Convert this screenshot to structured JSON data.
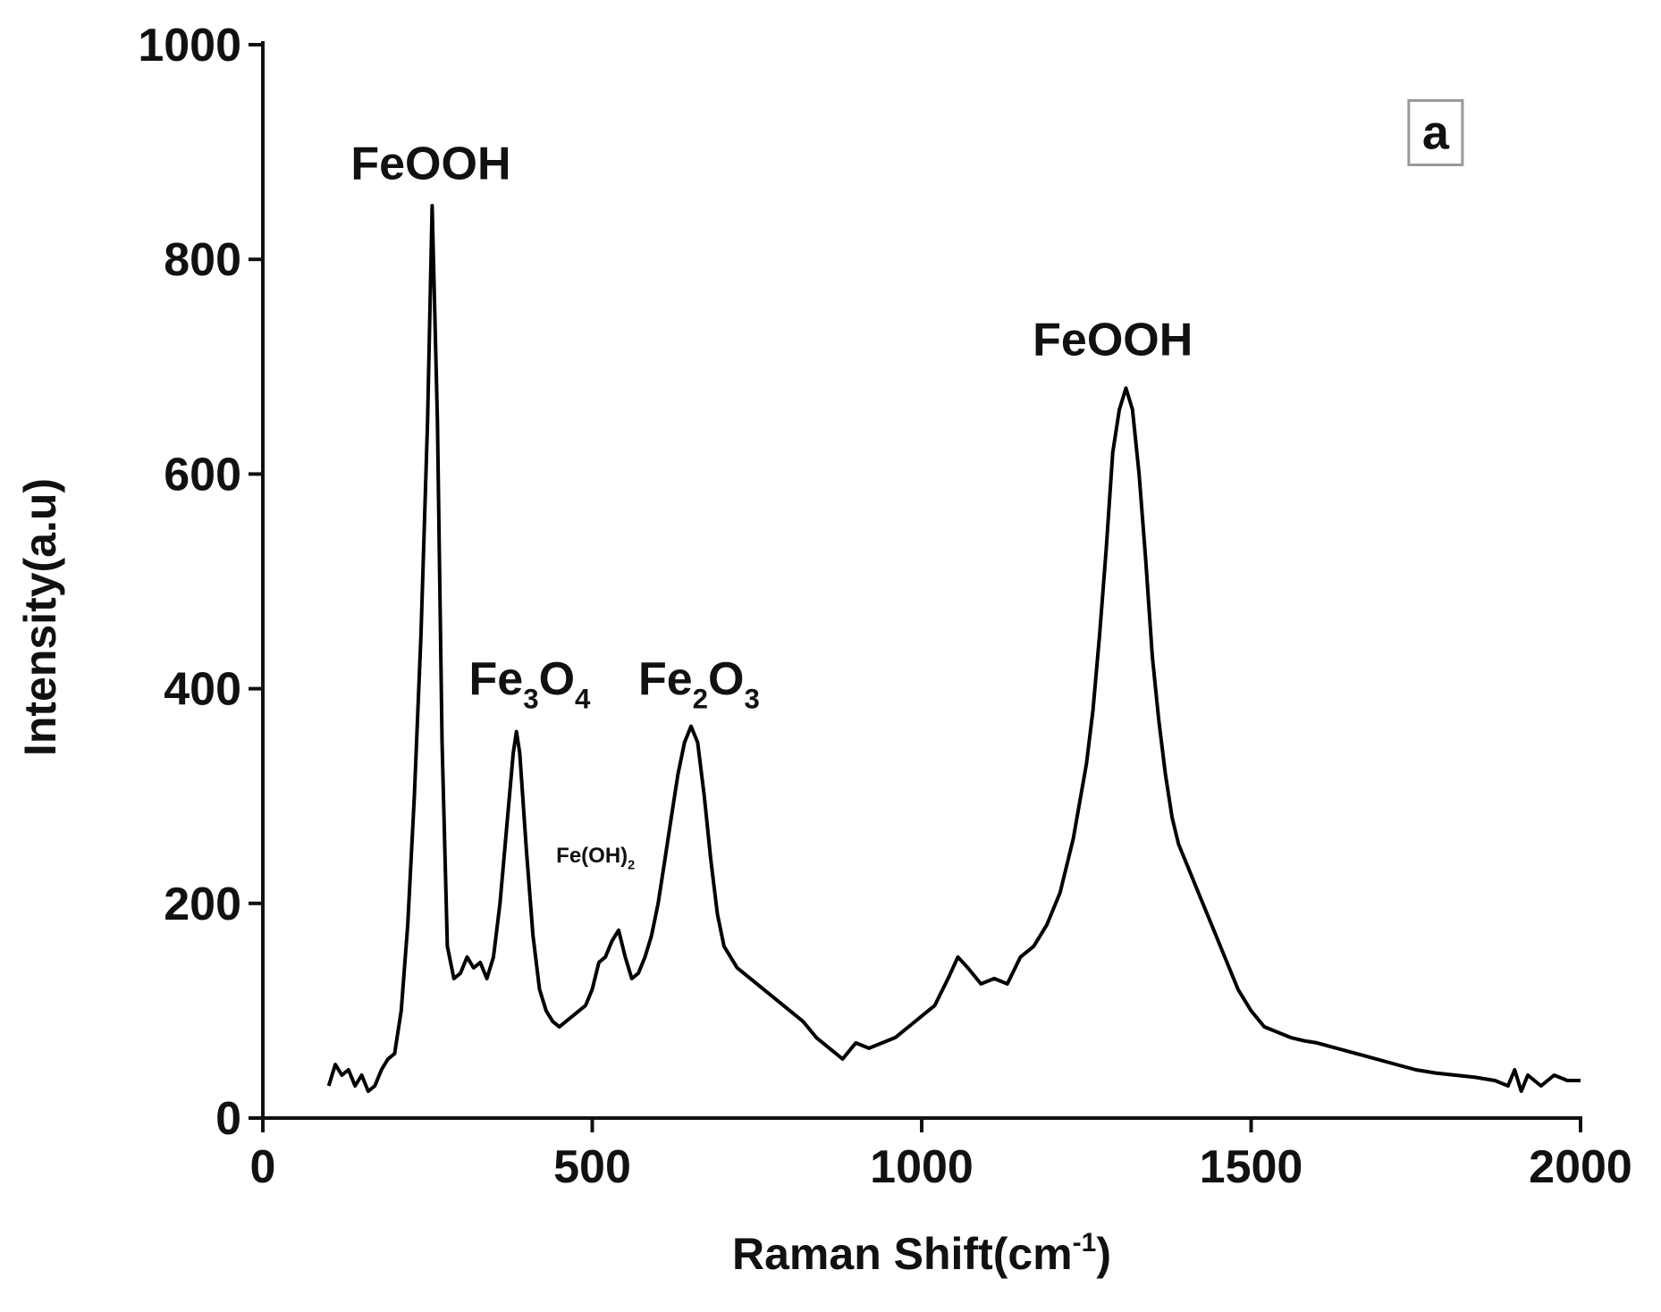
{
  "chart_data": {
    "type": "line",
    "xlabel": [
      {
        "text": "Raman Shift(cm"
      },
      {
        "text": "-1",
        "sup": true
      },
      {
        "text": ")"
      }
    ],
    "ylabel": "Intensity(a.u)",
    "panel_label": "a",
    "color": "#000000",
    "xlim": [
      0,
      2000
    ],
    "xticks": [
      0,
      500,
      1000,
      1500,
      2000
    ],
    "ylim": [
      0,
      1000
    ],
    "yticks": [
      0,
      200,
      400,
      600,
      800,
      1000
    ],
    "annotations": [
      {
        "x": 255,
        "y": 890,
        "size": "large",
        "parts": [
          {
            "text": "FeOOH"
          }
        ]
      },
      {
        "x": 405,
        "y": 410,
        "size": "large",
        "parts": [
          {
            "text": "Fe"
          },
          {
            "text": "3",
            "sub": true
          },
          {
            "text": "O"
          },
          {
            "text": "4",
            "sub": true
          }
        ]
      },
      {
        "x": 662,
        "y": 410,
        "size": "large",
        "parts": [
          {
            "text": "Fe"
          },
          {
            "text": "2",
            "sub": true
          },
          {
            "text": "O"
          },
          {
            "text": "3",
            "sub": true
          }
        ]
      },
      {
        "x": 505,
        "y": 245,
        "size": "small",
        "parts": [
          {
            "text": "Fe(OH)"
          },
          {
            "text": "2",
            "sub": true
          }
        ]
      },
      {
        "x": 1290,
        "y": 726,
        "size": "large",
        "parts": [
          {
            "text": "FeOOH"
          }
        ]
      }
    ],
    "x": [
      100,
      110,
      120,
      130,
      140,
      150,
      160,
      170,
      180,
      190,
      200,
      210,
      220,
      230,
      240,
      250,
      257,
      265,
      272,
      280,
      290,
      300,
      310,
      320,
      330,
      340,
      350,
      360,
      370,
      380,
      385,
      390,
      400,
      410,
      420,
      430,
      440,
      450,
      460,
      470,
      480,
      490,
      500,
      510,
      520,
      530,
      540,
      550,
      560,
      570,
      580,
      590,
      600,
      610,
      620,
      630,
      640,
      650,
      660,
      670,
      680,
      690,
      700,
      720,
      740,
      760,
      780,
      800,
      820,
      840,
      860,
      880,
      900,
      920,
      940,
      960,
      980,
      1000,
      1020,
      1040,
      1055,
      1070,
      1090,
      1110,
      1130,
      1150,
      1170,
      1190,
      1210,
      1230,
      1250,
      1260,
      1270,
      1280,
      1290,
      1300,
      1310,
      1320,
      1330,
      1340,
      1350,
      1360,
      1370,
      1380,
      1390,
      1400,
      1410,
      1420,
      1440,
      1460,
      1480,
      1500,
      1520,
      1540,
      1560,
      1580,
      1600,
      1630,
      1660,
      1690,
      1720,
      1750,
      1780,
      1810,
      1840,
      1870,
      1890,
      1900,
      1910,
      1920,
      1940,
      1960,
      1980,
      2000
    ],
    "values": [
      30,
      50,
      40,
      45,
      30,
      40,
      25,
      30,
      45,
      55,
      60,
      100,
      180,
      300,
      450,
      650,
      850,
      650,
      350,
      160,
      130,
      135,
      150,
      140,
      145,
      130,
      150,
      200,
      270,
      340,
      360,
      340,
      250,
      170,
      120,
      100,
      90,
      85,
      90,
      95,
      100,
      105,
      120,
      145,
      150,
      165,
      175,
      150,
      130,
      135,
      150,
      170,
      200,
      240,
      280,
      320,
      350,
      365,
      350,
      300,
      240,
      190,
      160,
      140,
      130,
      120,
      110,
      100,
      90,
      75,
      65,
      55,
      70,
      65,
      70,
      75,
      85,
      95,
      105,
      130,
      150,
      140,
      125,
      130,
      125,
      150,
      160,
      180,
      210,
      260,
      330,
      380,
      450,
      530,
      620,
      660,
      680,
      660,
      600,
      520,
      430,
      370,
      320,
      280,
      255,
      240,
      225,
      210,
      180,
      150,
      120,
      100,
      85,
      80,
      75,
      72,
      70,
      65,
      60,
      55,
      50,
      45,
      42,
      40,
      38,
      35,
      30,
      45,
      25,
      40,
      30,
      40,
      35,
      35
    ]
  }
}
